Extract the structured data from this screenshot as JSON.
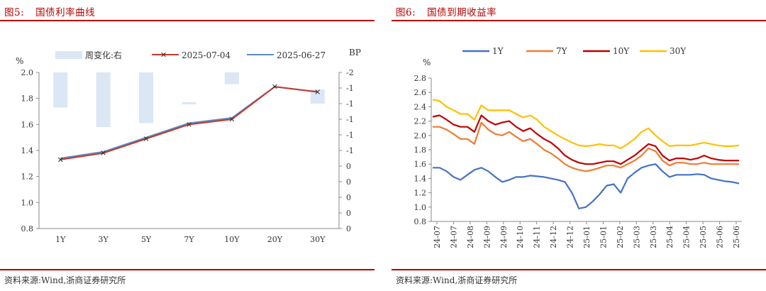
{
  "left": {
    "fig_number": "图5:",
    "fig_title": "国债利率曲线",
    "source": "资料来源:Wind,浙商证券研究所",
    "unit_left": "%",
    "unit_right": "BP",
    "legend": {
      "bar": "周变化:右",
      "line1": "2025-07-04",
      "line2": "2025-06-27"
    },
    "colors": {
      "bar": "#dbe7f5",
      "line1": "#c0392b",
      "line2": "#5b8cc8"
    }
  },
  "right": {
    "fig_number": "图6:",
    "fig_title": "国债到期收益率",
    "source": "资料来源:Wind,浙商证券研究所",
    "unit_left": "%",
    "colors": {
      "1Y": "#4472c4",
      "7Y": "#ed7d31",
      "10Y": "#c00000",
      "30Y": "#ffc000"
    }
  },
  "chart_data": [
    {
      "type": "bar+line",
      "categories": [
        "1Y",
        "3Y",
        "5Y",
        "7Y",
        "10Y",
        "20Y",
        "30Y"
      ],
      "y_left_ticks": [
        "0.8",
        "1.0",
        "1.2",
        "1.4",
        "1.6",
        "1.8",
        "2.0"
      ],
      "ylim_left": [
        0.8,
        2.0
      ],
      "y_right_ticks": [
        "-2",
        "-1",
        "-1",
        "-1",
        "-1",
        "-1",
        "0",
        "0",
        "0",
        "0",
        "0"
      ],
      "ylim_right": [
        -2.0,
        0.0
      ],
      "series": [
        {
          "name": "周变化:右",
          "kind": "bar",
          "axis": "right",
          "values": [
            -0.45,
            -0.7,
            -0.65,
            0.0,
            -0.15,
            0.0,
            0.0
          ]
        },
        {
          "name": "2025-07-04",
          "kind": "line",
          "axis": "left",
          "values": [
            1.33,
            1.38,
            1.49,
            1.6,
            1.64,
            1.89,
            1.85
          ]
        },
        {
          "name": "2025-06-27",
          "kind": "line",
          "axis": "left",
          "values": [
            1.34,
            1.39,
            1.5,
            1.61,
            1.65,
            1.89,
            1.85
          ]
        }
      ]
    },
    {
      "type": "line",
      "x_ticks": [
        "24-07",
        "24-07",
        "24-08",
        "24-09",
        "24-09",
        "24-10",
        "24-11",
        "24-12",
        "24-12",
        "25-01",
        "25-01",
        "25-02",
        "25-03",
        "25-03",
        "25-04",
        "25-04",
        "25-05",
        "25-06",
        "25-06"
      ],
      "y_ticks": [
        "0.8",
        "1.0",
        "1.2",
        "1.4",
        "1.6",
        "1.8",
        "2.0",
        "2.2",
        "2.4",
        "2.6",
        "2.8"
      ],
      "ylim": [
        0.8,
        2.8
      ],
      "series": [
        {
          "name": "1Y",
          "values": [
            1.55,
            1.55,
            1.5,
            1.42,
            1.38,
            1.45,
            1.52,
            1.55,
            1.5,
            1.42,
            1.35,
            1.38,
            1.42,
            1.42,
            1.44,
            1.43,
            1.42,
            1.4,
            1.38,
            1.35,
            1.2,
            0.98,
            1.0,
            1.08,
            1.18,
            1.3,
            1.32,
            1.2,
            1.4,
            1.48,
            1.55,
            1.58,
            1.6,
            1.5,
            1.42,
            1.45,
            1.45,
            1.45,
            1.46,
            1.45,
            1.4,
            1.38,
            1.36,
            1.35,
            1.33
          ]
        },
        {
          "name": "7Y",
          "values": [
            2.12,
            2.12,
            2.08,
            2.02,
            1.95,
            1.95,
            1.88,
            2.18,
            2.08,
            2.02,
            2.0,
            2.05,
            1.98,
            1.92,
            1.95,
            1.88,
            1.8,
            1.75,
            1.68,
            1.6,
            1.55,
            1.52,
            1.5,
            1.52,
            1.55,
            1.58,
            1.58,
            1.55,
            1.6,
            1.65,
            1.72,
            1.82,
            1.78,
            1.65,
            1.58,
            1.62,
            1.62,
            1.6,
            1.6,
            1.62,
            1.6,
            1.6,
            1.6,
            1.6,
            1.6
          ]
        },
        {
          "name": "10Y",
          "values": [
            2.26,
            2.28,
            2.22,
            2.15,
            2.12,
            2.12,
            2.05,
            2.28,
            2.2,
            2.15,
            2.18,
            2.2,
            2.12,
            2.06,
            2.1,
            2.02,
            1.95,
            1.9,
            1.82,
            1.72,
            1.66,
            1.62,
            1.6,
            1.6,
            1.62,
            1.64,
            1.64,
            1.6,
            1.66,
            1.72,
            1.8,
            1.88,
            1.85,
            1.72,
            1.65,
            1.68,
            1.68,
            1.66,
            1.68,
            1.72,
            1.68,
            1.66,
            1.65,
            1.65,
            1.65
          ]
        },
        {
          "name": "30Y",
          "values": [
            2.5,
            2.48,
            2.4,
            2.35,
            2.3,
            2.3,
            2.22,
            2.42,
            2.35,
            2.35,
            2.35,
            2.35,
            2.3,
            2.25,
            2.28,
            2.22,
            2.12,
            2.06,
            2.0,
            1.95,
            1.9,
            1.86,
            1.85,
            1.86,
            1.88,
            1.86,
            1.86,
            1.82,
            1.88,
            1.95,
            2.05,
            2.1,
            2.0,
            1.92,
            1.85,
            1.86,
            1.86,
            1.86,
            1.88,
            1.9,
            1.88,
            1.86,
            1.85,
            1.85,
            1.86
          ]
        }
      ]
    }
  ]
}
